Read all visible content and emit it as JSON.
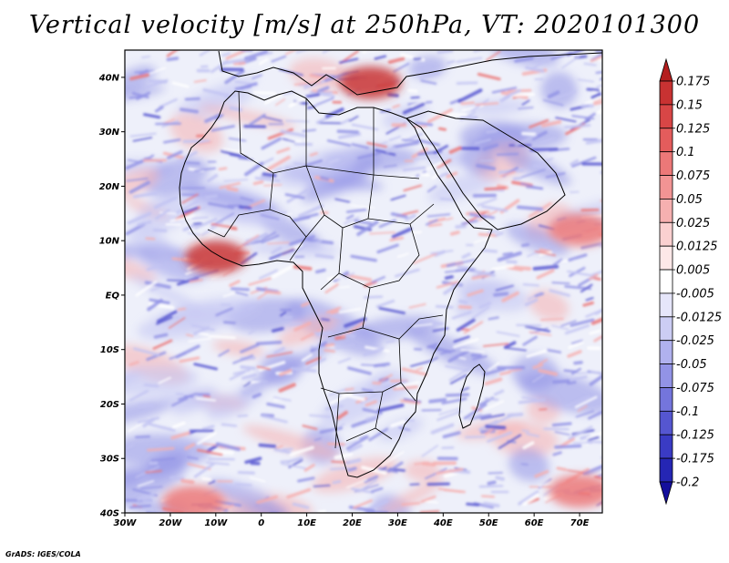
{
  "title": "Vertical velocity [m/s] at 250hPa, VT: 2020101300",
  "credit": "GrADS: IGES/COLA",
  "map": {
    "lon_range": [
      -30,
      75
    ],
    "lat_range": [
      -40,
      45
    ],
    "lon_ticks": [
      {
        "lon": -30,
        "label": "30W"
      },
      {
        "lon": -20,
        "label": "20W"
      },
      {
        "lon": -10,
        "label": "10W"
      },
      {
        "lon": 0,
        "label": "0"
      },
      {
        "lon": 10,
        "label": "10E"
      },
      {
        "lon": 20,
        "label": "20E"
      },
      {
        "lon": 30,
        "label": "30E"
      },
      {
        "lon": 40,
        "label": "40E"
      },
      {
        "lon": 50,
        "label": "50E"
      },
      {
        "lon": 60,
        "label": "60E"
      },
      {
        "lon": 70,
        "label": "70E"
      }
    ],
    "lat_ticks": [
      {
        "lat": 40,
        "label": "40N"
      },
      {
        "lat": 30,
        "label": "30N"
      },
      {
        "lat": 20,
        "label": "20N"
      },
      {
        "lat": 10,
        "label": "10N"
      },
      {
        "lat": 0,
        "label": "EQ"
      },
      {
        "lat": -10,
        "label": "10S"
      },
      {
        "lat": -20,
        "label": "20S"
      },
      {
        "lat": -30,
        "label": "30S"
      },
      {
        "lat": -40,
        "label": "40S"
      }
    ],
    "colorbar": {
      "labels": [
        "0.175",
        "0.15",
        "0.125",
        "0.1",
        "0.075",
        "0.05",
        "0.025",
        "0.0125",
        "0.005",
        "-0.005",
        "-0.0125",
        "-0.025",
        "-0.05",
        "-0.075",
        "-0.1",
        "-0.125",
        "-0.175",
        "-0.2"
      ],
      "colors": [
        "#b41e1e",
        "#c83232",
        "#d84646",
        "#e45c5c",
        "#ec7878",
        "#f29494",
        "#f6b0b0",
        "#fad0d0",
        "#fde8e8",
        "#ffffff",
        "#e6e6fa",
        "#cccdf4",
        "#b0b1ee",
        "#9293e6",
        "#7475dc",
        "#5556d0",
        "#3a3bc4",
        "#2526b4",
        "#140f9c"
      ]
    },
    "field_colors": {
      "background": "#eef0fa",
      "strong_up": "#c83232",
      "moderate_up": "#ec7878",
      "weak_up": "#f6b0b0",
      "weak_down": "#c2c4f2",
      "moderate_down": "#9293e6",
      "strong_down": "#5556d0"
    },
    "features": [
      {
        "name": "west-africa-updraft",
        "lon": -10,
        "lat": 7,
        "kind": "strong_up"
      },
      {
        "name": "mediterranean-updraft",
        "lon": 24,
        "lat": 39,
        "kind": "strong_up"
      },
      {
        "name": "arabian-sea-updraft",
        "lon": 70,
        "lat": 12,
        "kind": "moderate_up"
      },
      {
        "name": "southern-ocean-updraft",
        "lon": 70,
        "lat": -36,
        "kind": "moderate_up"
      },
      {
        "name": "south-west-updraft",
        "lon": -15,
        "lat": -38,
        "kind": "moderate_up"
      }
    ]
  }
}
